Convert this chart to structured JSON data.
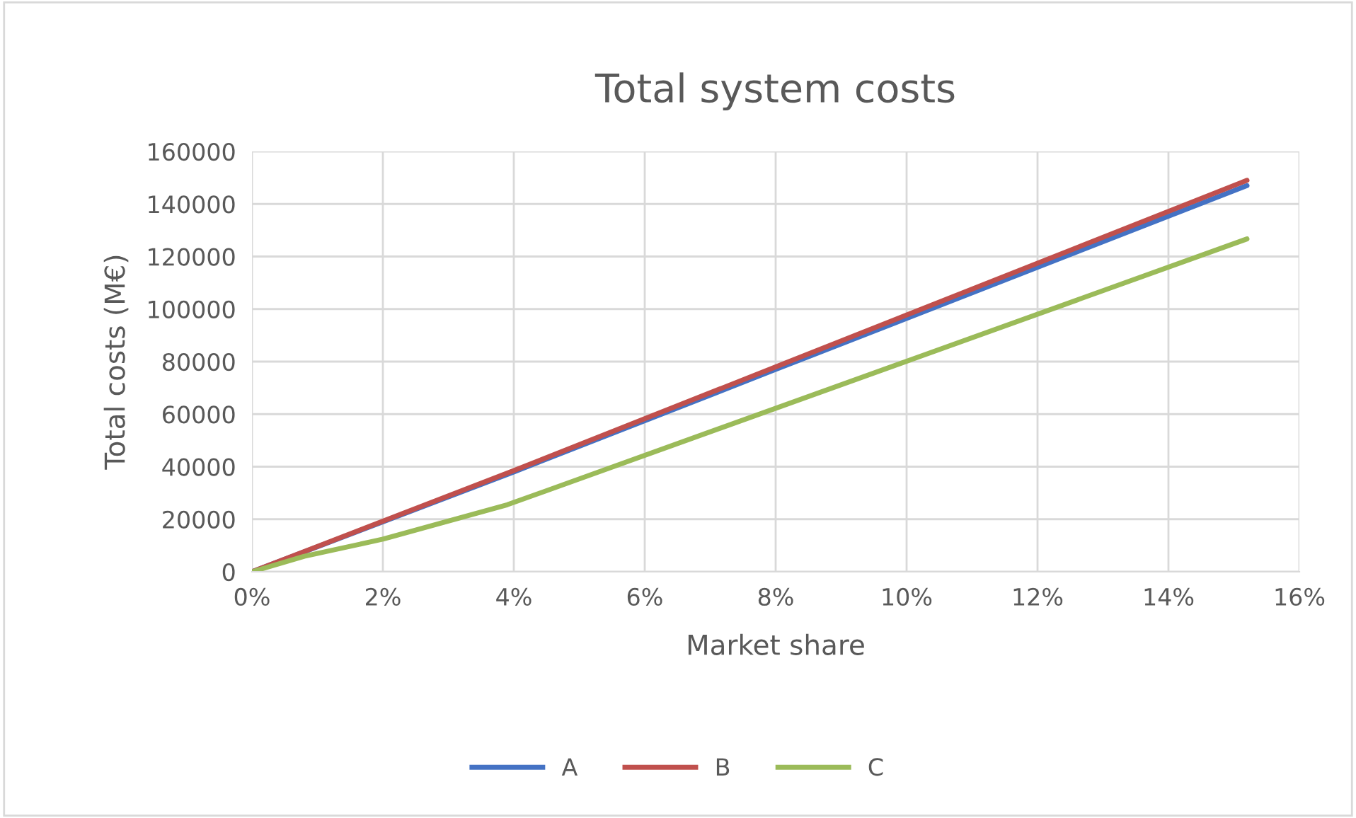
{
  "chart_data": {
    "type": "line",
    "title": "Total system costs",
    "xlabel": "Market share",
    "ylabel": "Total costs (M€)",
    "xlim": [
      0,
      16
    ],
    "xticks": [
      {
        "value": 0,
        "label": "0%"
      },
      {
        "value": 2,
        "label": "2%"
      },
      {
        "value": 4,
        "label": "4%"
      },
      {
        "value": 6,
        "label": "6%"
      },
      {
        "value": 8,
        "label": "8%"
      },
      {
        "value": 10,
        "label": "10%"
      },
      {
        "value": 12,
        "label": "12%"
      },
      {
        "value": 14,
        "label": "14%"
      },
      {
        "value": 16,
        "label": "16%"
      }
    ],
    "ylim": [
      0,
      160000
    ],
    "yticks": [
      0,
      20000,
      40000,
      60000,
      80000,
      100000,
      120000,
      140000,
      160000
    ],
    "grid": true,
    "legend": "bottom",
    "marker": "none",
    "line_style": "solid",
    "series": [
      {
        "name": "A",
        "color": "#4472c4",
        "x": [
          0,
          4,
          8,
          15.2
        ],
        "values": [
          0,
          38000,
          77000,
          147000
        ]
      },
      {
        "name": "B",
        "color": "#c0504d",
        "x": [
          0,
          4,
          8,
          15.2
        ],
        "values": [
          0,
          38500,
          78000,
          149000
        ]
      },
      {
        "name": "C",
        "color": "#9bbb59",
        "x": [
          0,
          0.8,
          2,
          3.9,
          15.2
        ],
        "values": [
          0,
          5900,
          12400,
          25500,
          126700
        ]
      }
    ]
  }
}
